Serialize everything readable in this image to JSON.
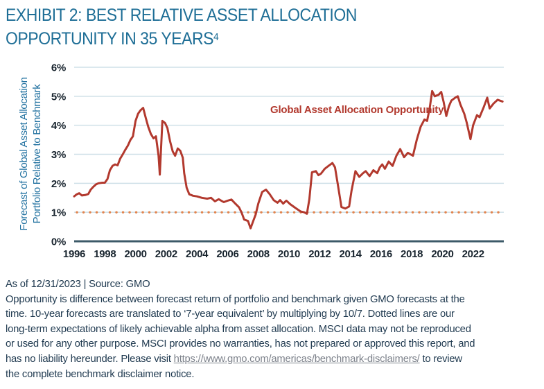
{
  "title": {
    "line1": "EXHIBIT 2: BEST RELATIVE ASSET ALLOCATION",
    "line2": "OPPORTUNITY IN 35 YEARS",
    "footnote_marker": "4"
  },
  "chart_data": {
    "type": "line",
    "series_label": "Global Asset Allocation Opportunity",
    "ylabel_line1": "Forecast of Global Asset Allocation",
    "ylabel_line2": "Portfolio Relative to Benchmark",
    "xlabel": "",
    "xlim": [
      1996,
      2024
    ],
    "ylim": [
      0,
      6
    ],
    "x_ticks": [
      1996,
      1998,
      2000,
      2002,
      2004,
      2006,
      2008,
      2010,
      2012,
      2014,
      2016,
      2018,
      2020,
      2022
    ],
    "y_ticks": [
      "0%",
      "1%",
      "2%",
      "3%",
      "4%",
      "5%",
      "6%"
    ],
    "grid": "horizontal-only",
    "dotted_reference_line": 1.0,
    "dotted_reference_meaning": "long-term expectation of likely achievable alpha from asset allocation",
    "colors": {
      "line": "#B2392E",
      "dotted": "#E2854F",
      "grid": "#CFE0E8",
      "baseline": "#3C5A68",
      "tick_text": "#18242E",
      "title_blue": "#1E6E96"
    },
    "series": [
      {
        "name": "Global Asset Allocation Opportunity",
        "points": [
          [
            1996.0,
            1.55
          ],
          [
            1996.17,
            1.62
          ],
          [
            1996.33,
            1.66
          ],
          [
            1996.5,
            1.58
          ],
          [
            1996.75,
            1.6
          ],
          [
            1996.92,
            1.63
          ],
          [
            1997.08,
            1.78
          ],
          [
            1997.25,
            1.88
          ],
          [
            1997.42,
            1.96
          ],
          [
            1997.58,
            2.0
          ],
          [
            1997.83,
            2.02
          ],
          [
            1998.0,
            2.02
          ],
          [
            1998.17,
            2.15
          ],
          [
            1998.33,
            2.45
          ],
          [
            1998.5,
            2.6
          ],
          [
            1998.67,
            2.65
          ],
          [
            1998.83,
            2.62
          ],
          [
            1999.0,
            2.85
          ],
          [
            1999.17,
            3.0
          ],
          [
            1999.33,
            3.15
          ],
          [
            1999.5,
            3.3
          ],
          [
            1999.67,
            3.5
          ],
          [
            1999.83,
            3.62
          ],
          [
            2000.0,
            4.15
          ],
          [
            2000.17,
            4.4
          ],
          [
            2000.33,
            4.52
          ],
          [
            2000.5,
            4.6
          ],
          [
            2000.67,
            4.25
          ],
          [
            2000.83,
            3.95
          ],
          [
            2001.0,
            3.7
          ],
          [
            2001.17,
            3.55
          ],
          [
            2001.33,
            3.62
          ],
          [
            2001.5,
            2.95
          ],
          [
            2001.58,
            2.3
          ],
          [
            2001.75,
            4.15
          ],
          [
            2001.92,
            4.08
          ],
          [
            2002.08,
            3.9
          ],
          [
            2002.25,
            3.45
          ],
          [
            2002.42,
            3.1
          ],
          [
            2002.58,
            2.95
          ],
          [
            2002.75,
            3.2
          ],
          [
            2002.92,
            3.12
          ],
          [
            2003.08,
            2.88
          ],
          [
            2003.17,
            2.35
          ],
          [
            2003.33,
            1.85
          ],
          [
            2003.5,
            1.62
          ],
          [
            2003.75,
            1.57
          ],
          [
            2004.0,
            1.55
          ],
          [
            2004.33,
            1.5
          ],
          [
            2004.67,
            1.47
          ],
          [
            2004.92,
            1.5
          ],
          [
            2005.17,
            1.38
          ],
          [
            2005.42,
            1.45
          ],
          [
            2005.75,
            1.35
          ],
          [
            2006.0,
            1.4
          ],
          [
            2006.25,
            1.44
          ],
          [
            2006.5,
            1.3
          ],
          [
            2006.75,
            1.17
          ],
          [
            2006.92,
            0.98
          ],
          [
            2007.08,
            0.75
          ],
          [
            2007.33,
            0.7
          ],
          [
            2007.5,
            0.45
          ],
          [
            2007.67,
            0.7
          ],
          [
            2007.83,
            0.92
          ],
          [
            2008.0,
            1.3
          ],
          [
            2008.25,
            1.7
          ],
          [
            2008.5,
            1.78
          ],
          [
            2008.75,
            1.62
          ],
          [
            2009.0,
            1.42
          ],
          [
            2009.25,
            1.33
          ],
          [
            2009.42,
            1.42
          ],
          [
            2009.62,
            1.3
          ],
          [
            2009.83,
            1.4
          ],
          [
            2010.08,
            1.28
          ],
          [
            2010.42,
            1.15
          ],
          [
            2010.75,
            1.03
          ],
          [
            2011.0,
            1.0
          ],
          [
            2011.17,
            0.95
          ],
          [
            2011.33,
            1.45
          ],
          [
            2011.5,
            2.38
          ],
          [
            2011.75,
            2.42
          ],
          [
            2011.92,
            2.28
          ],
          [
            2012.08,
            2.33
          ],
          [
            2012.33,
            2.5
          ],
          [
            2012.58,
            2.6
          ],
          [
            2012.83,
            2.7
          ],
          [
            2013.0,
            2.55
          ],
          [
            2013.17,
            2.0
          ],
          [
            2013.42,
            1.18
          ],
          [
            2013.67,
            1.13
          ],
          [
            2013.92,
            1.2
          ],
          [
            2014.08,
            1.75
          ],
          [
            2014.33,
            2.42
          ],
          [
            2014.58,
            2.22
          ],
          [
            2014.83,
            2.35
          ],
          [
            2015.0,
            2.42
          ],
          [
            2015.25,
            2.25
          ],
          [
            2015.5,
            2.45
          ],
          [
            2015.75,
            2.35
          ],
          [
            2015.92,
            2.55
          ],
          [
            2016.08,
            2.65
          ],
          [
            2016.25,
            2.5
          ],
          [
            2016.5,
            2.75
          ],
          [
            2016.75,
            2.6
          ],
          [
            2017.0,
            2.95
          ],
          [
            2017.25,
            3.18
          ],
          [
            2017.5,
            2.9
          ],
          [
            2017.75,
            3.05
          ],
          [
            2018.08,
            2.95
          ],
          [
            2018.33,
            3.5
          ],
          [
            2018.58,
            3.95
          ],
          [
            2018.83,
            4.2
          ],
          [
            2019.0,
            4.15
          ],
          [
            2019.17,
            4.6
          ],
          [
            2019.33,
            5.18
          ],
          [
            2019.5,
            5.0
          ],
          [
            2019.75,
            5.05
          ],
          [
            2019.92,
            5.15
          ],
          [
            2020.08,
            4.8
          ],
          [
            2020.25,
            4.32
          ],
          [
            2020.42,
            4.65
          ],
          [
            2020.58,
            4.85
          ],
          [
            2020.83,
            4.95
          ],
          [
            2021.0,
            5.0
          ],
          [
            2021.17,
            4.72
          ],
          [
            2021.42,
            4.4
          ],
          [
            2021.58,
            4.1
          ],
          [
            2021.83,
            3.52
          ],
          [
            2022.0,
            4.0
          ],
          [
            2022.25,
            4.35
          ],
          [
            2022.42,
            4.28
          ],
          [
            2022.67,
            4.6
          ],
          [
            2022.92,
            4.95
          ],
          [
            2023.08,
            4.58
          ],
          [
            2023.33,
            4.75
          ],
          [
            2023.6,
            4.88
          ],
          [
            2023.92,
            4.82
          ]
        ]
      }
    ]
  },
  "footer": {
    "as_of_line": "As of 12/31/2023 | Source: GMO",
    "lines": [
      "Opportunity is difference between forecast return of portfolio and benchmark given GMO forecasts at the",
      "time. 10-year forecasts are translated to ‘7-year equivalent’ by multiplying by 10/7. Dotted lines are our",
      "long-term expectations of likely achievable alpha from asset allocation. MSCI data may not be reproduced",
      "or used for any other purpose. MSCI provides no warranties, has not prepared or approved this report, and"
    ],
    "line6_pre": "has no liability hereunder. Please visit ",
    "link_text": "https://www.gmo.com/americas/benchmark-disclaimers/",
    "line6_post": " to review",
    "line7": "the complete benchmark disclaimer notice."
  }
}
